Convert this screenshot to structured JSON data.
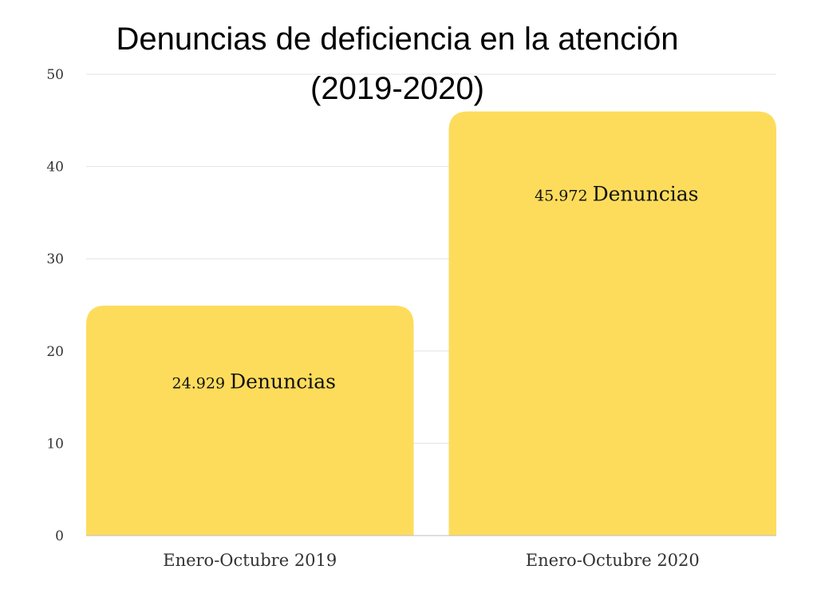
{
  "chart_data": {
    "type": "bar",
    "title_line1": "Denuncias de deficiencia en la atención",
    "title_line2": "(2019-2020)",
    "categories": [
      "Enero-Octubre 2019",
      "Enero-Octubre 2020"
    ],
    "values": [
      24.929,
      45.972
    ],
    "data_labels": [
      {
        "number": "24.929",
        "word": "Denuncias"
      },
      {
        "number": "45.972",
        "word": "Denuncias"
      }
    ],
    "yticks": [
      "0",
      "10",
      "20",
      "30",
      "40",
      "50"
    ],
    "ylim": [
      0,
      50
    ],
    "grid": true,
    "legend": "none",
    "colors": {
      "bar": "#FDDC5C",
      "grid": "#e3e3e3",
      "axis": "#bdbdbd"
    }
  }
}
